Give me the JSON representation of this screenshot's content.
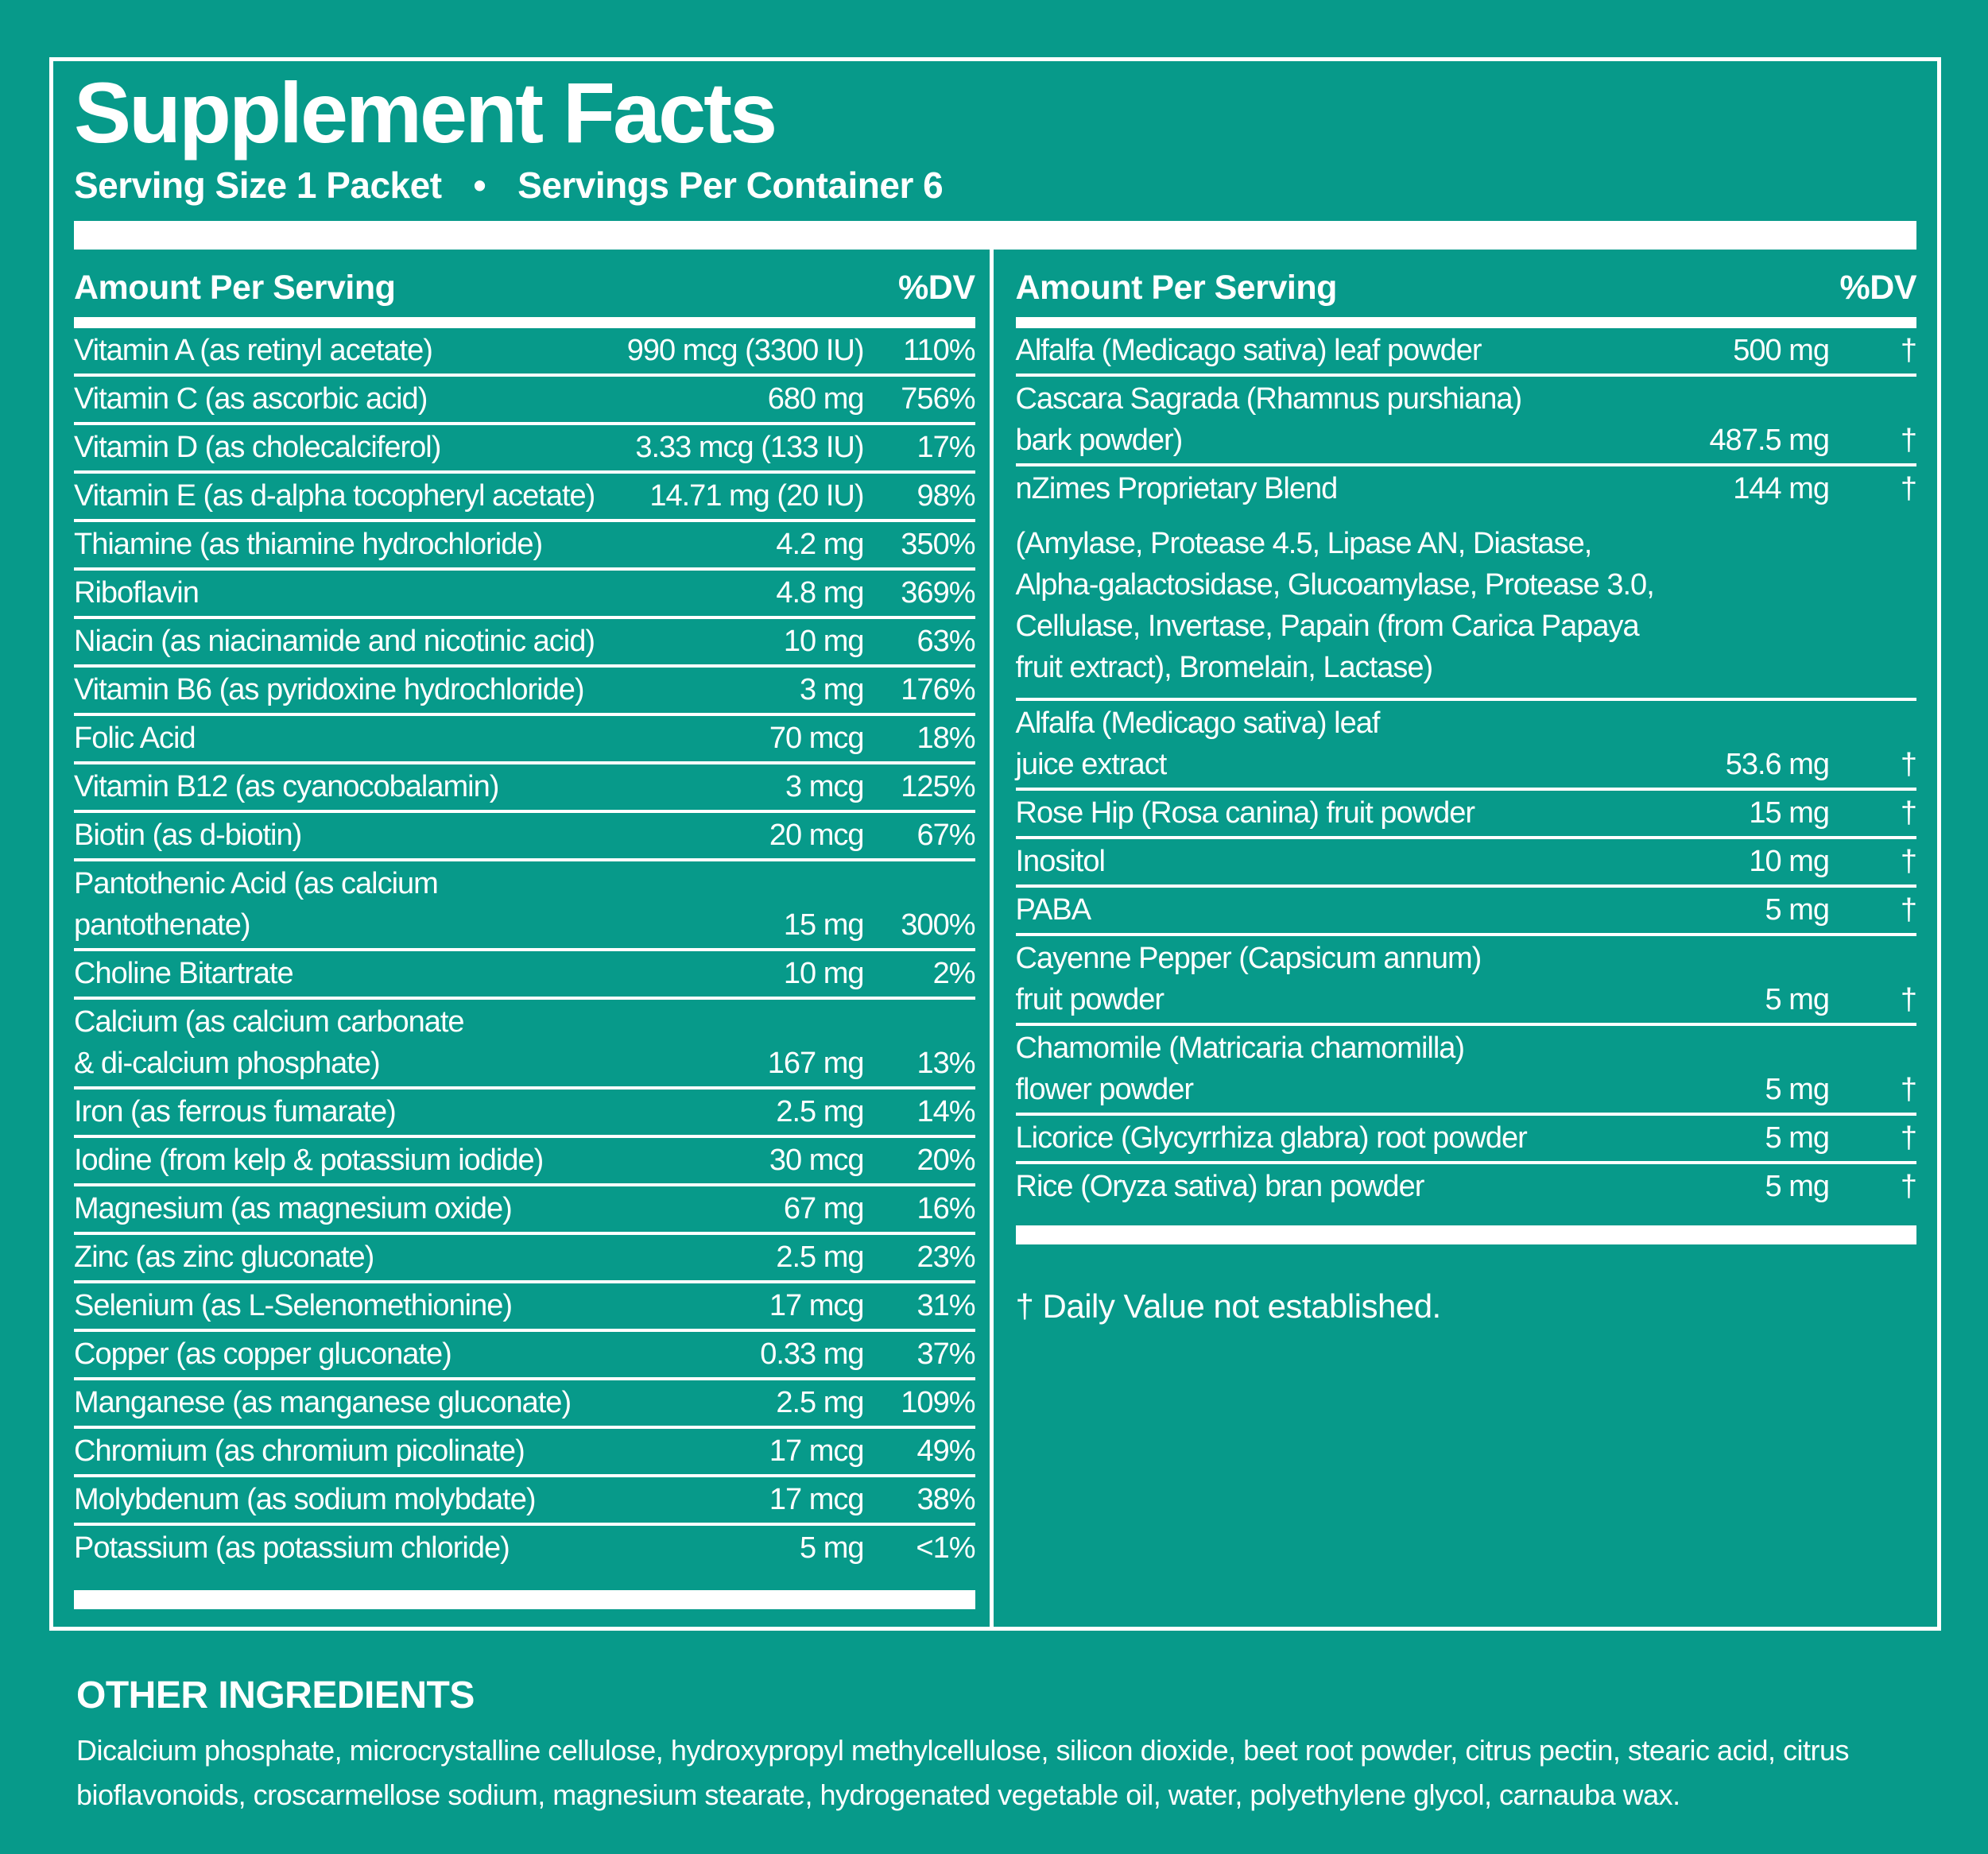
{
  "colors": {
    "background": "#079a8a",
    "foreground": "#ffffff"
  },
  "title": "Supplement Facts",
  "serving_line": {
    "serving_size": "Serving Size 1 Packet",
    "bullet": "•",
    "servings_per_container": "Servings Per Container 6"
  },
  "table": {
    "amount_header": "Amount Per Serving",
    "dv_header": "%DV",
    "left_rows": [
      {
        "name": [
          "Vitamin A (as retinyl acetate)"
        ],
        "amount": "990 mcg (3300 IU)",
        "dv": "110%"
      },
      {
        "name": [
          "Vitamin C (as ascorbic acid)"
        ],
        "amount": "680 mg",
        "dv": "756%"
      },
      {
        "name": [
          "Vitamin D (as cholecalciferol)"
        ],
        "amount": "3.33 mcg (133 IU)",
        "dv": "17%"
      },
      {
        "name": [
          "Vitamin E (as d-alpha tocopheryl acetate)"
        ],
        "amount": "14.71 mg (20 IU)",
        "dv": "98%"
      },
      {
        "name": [
          "Thiamine (as thiamine hydrochloride)"
        ],
        "amount": "4.2 mg",
        "dv": "350%"
      },
      {
        "name": [
          "Riboflavin"
        ],
        "amount": "4.8 mg",
        "dv": "369%"
      },
      {
        "name": [
          "Niacin (as niacinamide and nicotinic acid)"
        ],
        "amount": "10 mg",
        "dv": "63%"
      },
      {
        "name": [
          "Vitamin B6 (as pyridoxine hydrochloride)"
        ],
        "amount": "3 mg",
        "dv": "176%"
      },
      {
        "name": [
          "Folic Acid"
        ],
        "amount": "70 mcg",
        "dv": "18%"
      },
      {
        "name": [
          "Vitamin B12 (as cyanocobalamin)"
        ],
        "amount": "3 mcg",
        "dv": "125%"
      },
      {
        "name": [
          "Biotin (as d-biotin)"
        ],
        "amount": "20 mcg",
        "dv": "67%"
      },
      {
        "name": [
          "Pantothenic Acid (as calcium",
          "pantothenate)"
        ],
        "amount": "15 mg",
        "dv": "300%"
      },
      {
        "name": [
          "Choline Bitartrate"
        ],
        "amount": "10 mg",
        "dv": "2%"
      },
      {
        "name": [
          "Calcium (as calcium carbonate",
          "& di-calcium phosphate)"
        ],
        "amount": "167 mg",
        "dv": "13%"
      },
      {
        "name": [
          "Iron (as ferrous fumarate)"
        ],
        "amount": "2.5 mg",
        "dv": "14%"
      },
      {
        "name": [
          "Iodine (from kelp & potassium iodide)"
        ],
        "amount": "30 mcg",
        "dv": "20%"
      },
      {
        "name": [
          "Magnesium (as magnesium oxide)"
        ],
        "amount": "67 mg",
        "dv": "16%"
      },
      {
        "name": [
          "Zinc (as zinc gluconate)"
        ],
        "amount": "2.5 mg",
        "dv": "23%"
      },
      {
        "name": [
          "Selenium (as L-Selenomethionine)"
        ],
        "amount": "17 mcg",
        "dv": "31%"
      },
      {
        "name": [
          "Copper (as copper gluconate)"
        ],
        "amount": "0.33 mg",
        "dv": "37%"
      },
      {
        "name": [
          "Manganese (as manganese gluconate)"
        ],
        "amount": "2.5 mg",
        "dv": "109%"
      },
      {
        "name": [
          "Chromium (as chromium picolinate)"
        ],
        "amount": "17 mcg",
        "dv": "49%"
      },
      {
        "name": [
          "Molybdenum (as sodium molybdate)"
        ],
        "amount": "17 mcg",
        "dv": "38%"
      },
      {
        "name": [
          "Potassium (as potassium chloride)"
        ],
        "amount": "5 mg",
        "dv": "<1%",
        "last": true
      }
    ],
    "right_rows": [
      {
        "name": [
          "Alfalfa (Medicago sativa) leaf powder"
        ],
        "amount": "500 mg",
        "dv": "†"
      },
      {
        "name": [
          "Cascara Sagrada (Rhamnus purshiana)",
          "bark powder)"
        ],
        "amount": "487.5 mg",
        "dv": "†"
      },
      {
        "name": [
          "nZimes Proprietary Blend"
        ],
        "amount": "144 mg",
        "dv": "†",
        "no_border": true
      },
      {
        "note": [
          "(Amylase, Protease 4.5, Lipase AN, Diastase,",
          "Alpha-galactosidase, Glucoamylase, Protease 3.0,",
          "Cellulase, Invertase, Papain (from Carica Papaya",
          "fruit extract), Bromelain, Lactase)"
        ]
      },
      {
        "name": [
          "Alfalfa (Medicago sativa) leaf",
          "juice extract"
        ],
        "amount": "53.6 mg",
        "dv": "†"
      },
      {
        "name": [
          "Rose Hip (Rosa canina) fruit powder"
        ],
        "amount": "15 mg",
        "dv": "†"
      },
      {
        "name": [
          "Inositol"
        ],
        "amount": "10 mg",
        "dv": "†"
      },
      {
        "name": [
          "PABA"
        ],
        "amount": "5 mg",
        "dv": "†"
      },
      {
        "name": [
          "Cayenne Pepper (Capsicum annum)",
          "fruit powder"
        ],
        "amount": "5 mg",
        "dv": "†"
      },
      {
        "name": [
          "Chamomile (Matricaria chamomilla)",
          "flower powder"
        ],
        "amount": "5 mg",
        "dv": "†"
      },
      {
        "name": [
          "Licorice (Glycyrrhiza glabra) root powder"
        ],
        "amount": "5 mg",
        "dv": "†"
      },
      {
        "name": [
          "Rice (Oryza sativa) bran powder"
        ],
        "amount": "5 mg",
        "dv": "†",
        "last": true
      }
    ],
    "footnote": "† Daily Value not established."
  },
  "other_ingredients": {
    "heading": "OTHER INGREDIENTS",
    "text": "Dicalcium phosphate, microcrystalline cellulose, hydroxypropyl methylcellulose, silicon dioxide, beet root powder, citrus pectin, stearic acid, citrus bioflavonoids, croscarmellose sodium, magnesium stearate, hydrogenated vegetable oil, water, polyethylene glycol, carnauba wax."
  }
}
